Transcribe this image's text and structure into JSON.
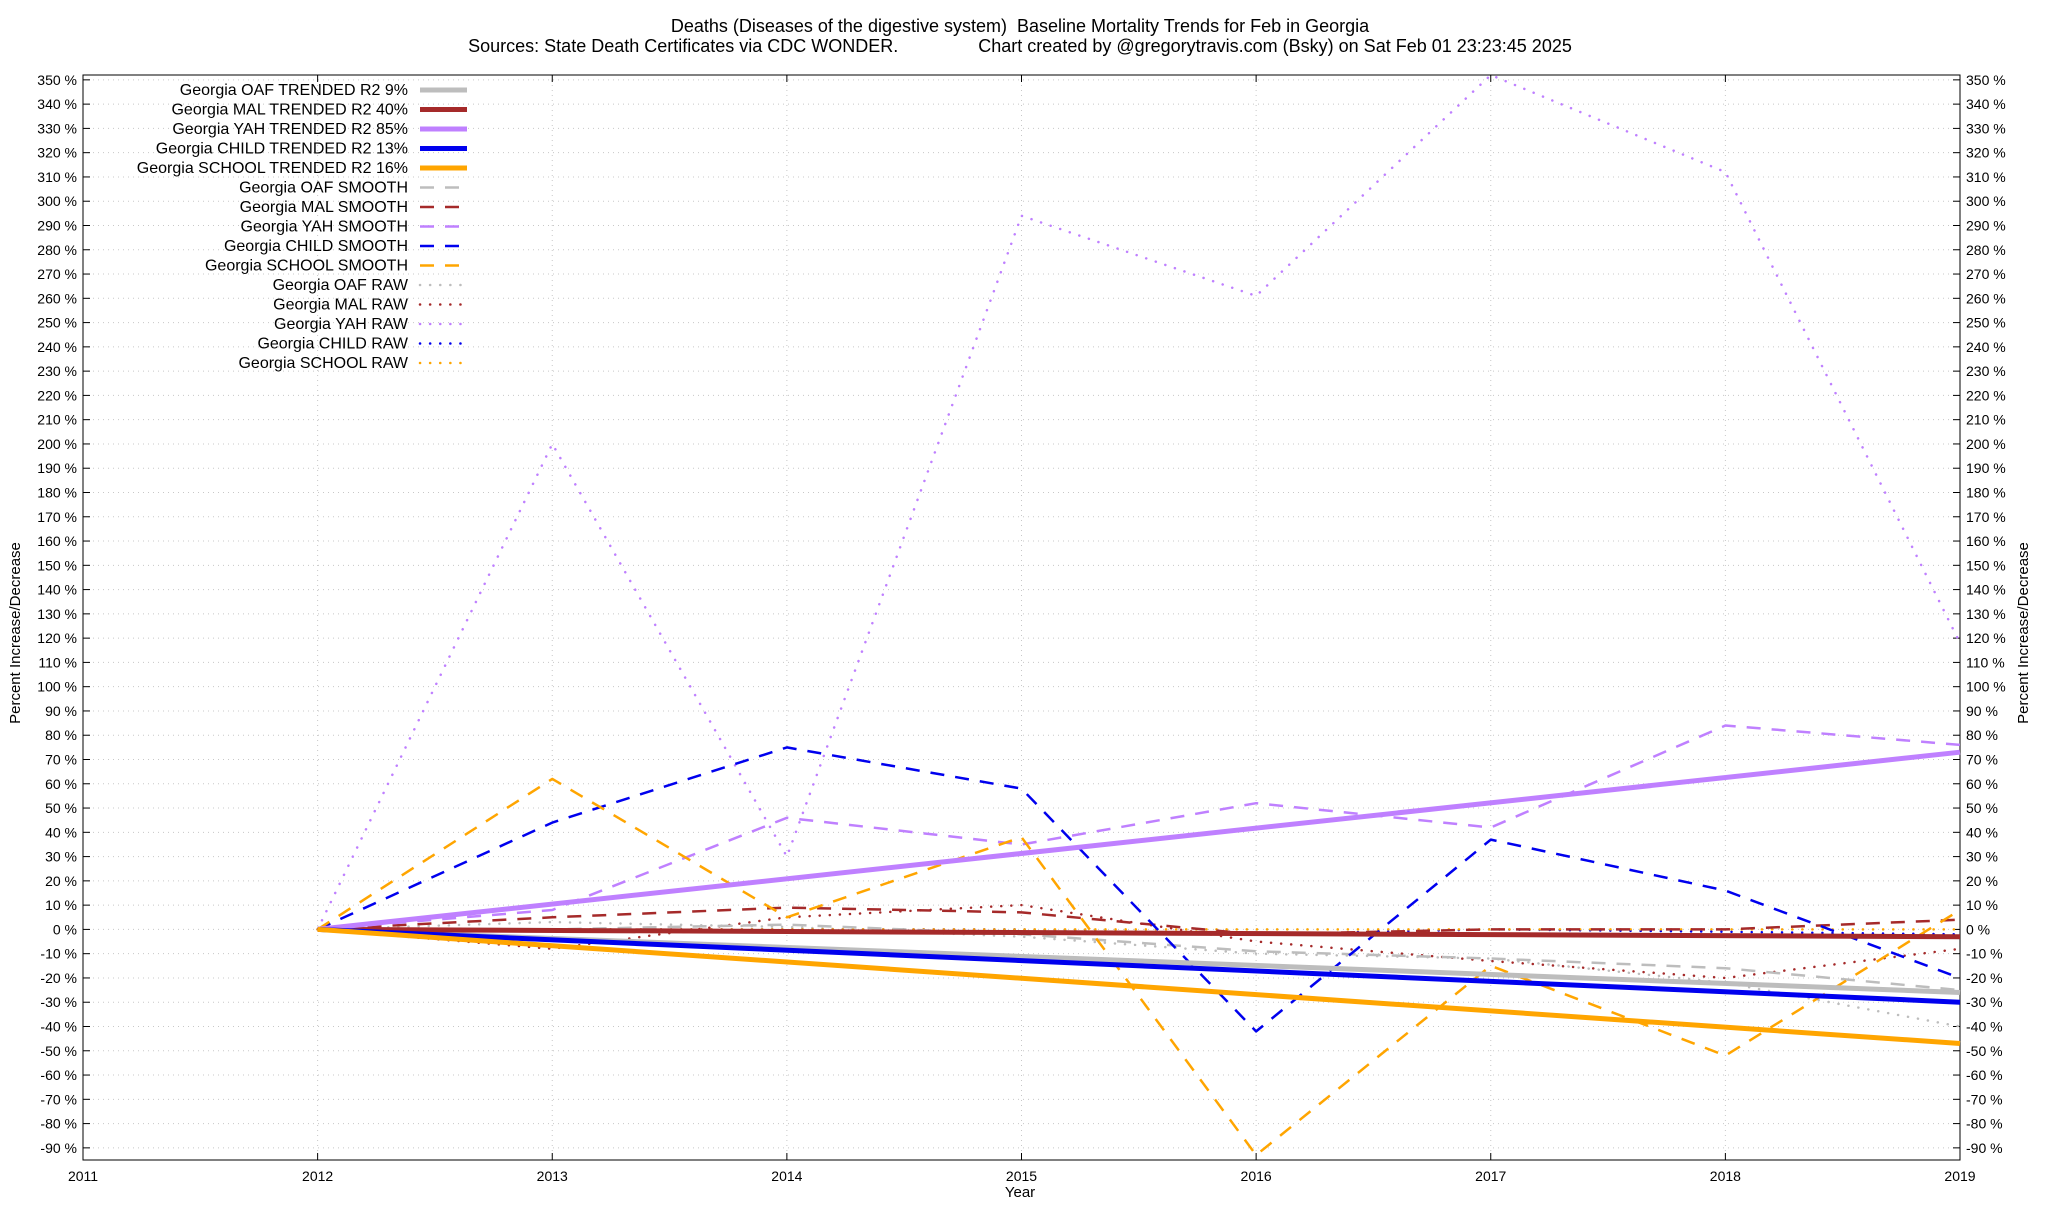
{
  "chart_data": {
    "type": "line",
    "title": "Deaths (Diseases of the digestive system)  Baseline Mortality Trends for Feb in Georgia",
    "subtitle": "Sources: State Death Certificates via CDC WONDER.                Chart created by @gregorytravis.com (Bsky) on Sat Feb 01 23:23:45 2025",
    "xlabel": "Year",
    "ylabel": "Percent Increase/Decrease",
    "y2label": "Percent Increase/Decrease",
    "xlim": [
      2011,
      2019
    ],
    "ylim": [
      -95,
      352
    ],
    "xticks": [
      2011,
      2012,
      2013,
      2014,
      2015,
      2016,
      2017,
      2018,
      2019
    ],
    "yticks": [
      -90,
      -80,
      -70,
      -60,
      -50,
      -40,
      -30,
      -20,
      -10,
      0,
      10,
      20,
      30,
      40,
      50,
      60,
      70,
      80,
      90,
      100,
      110,
      120,
      130,
      140,
      150,
      160,
      170,
      180,
      190,
      200,
      210,
      220,
      230,
      240,
      250,
      260,
      270,
      280,
      290,
      300,
      310,
      320,
      330,
      340,
      350
    ],
    "ytick_suffix": " %",
    "grid": true,
    "legend_position": "top-left",
    "series": [
      {
        "name": "Georgia OAF TRENDED R2  9%",
        "style": "solid",
        "color": "#bdbdbd",
        "x": [
          2012,
          2019
        ],
        "y": [
          0,
          -26
        ]
      },
      {
        "name": "Georgia MAL TRENDED R2  40%",
        "style": "solid",
        "color": "#a52a2a",
        "x": [
          2012,
          2019
        ],
        "y": [
          0,
          -3
        ]
      },
      {
        "name": "Georgia YAH TRENDED R2  85%",
        "style": "solid",
        "color": "#bf80ff",
        "x": [
          2012,
          2019
        ],
        "y": [
          0,
          73
        ]
      },
      {
        "name": "Georgia CHILD TRENDED R2  13%",
        "style": "solid",
        "color": "#0000ee",
        "x": [
          2012,
          2019
        ],
        "y": [
          0,
          -30
        ]
      },
      {
        "name": "Georgia SCHOOL TRENDED R2  16%",
        "style": "solid",
        "color": "#ffa500",
        "x": [
          2012,
          2019
        ],
        "y": [
          0,
          -47
        ]
      },
      {
        "name": "Georgia OAF SMOOTH",
        "style": "dash",
        "color": "#bdbdbd",
        "x": [
          2012,
          2013,
          2014,
          2015,
          2016,
          2017,
          2018,
          2019
        ],
        "y": [
          0,
          0,
          2,
          -2,
          -9,
          -12,
          -16,
          -25
        ]
      },
      {
        "name": "Georgia MAL SMOOTH",
        "style": "dash",
        "color": "#a52a2a",
        "x": [
          2012,
          2013,
          2014,
          2015,
          2016,
          2017,
          2018,
          2019
        ],
        "y": [
          0,
          5,
          9,
          7,
          -2,
          0,
          0,
          4
        ]
      },
      {
        "name": "Georgia YAH SMOOTH",
        "style": "dash",
        "color": "#bf80ff",
        "x": [
          2012,
          2013,
          2014,
          2015,
          2016,
          2017,
          2018,
          2019
        ],
        "y": [
          0,
          8,
          46,
          35,
          52,
          42,
          84,
          76
        ]
      },
      {
        "name": "Georgia CHILD SMOOTH",
        "style": "dash",
        "color": "#0000ee",
        "x": [
          2012,
          2013,
          2014,
          2015,
          2016,
          2017,
          2018,
          2019
        ],
        "y": [
          0,
          44,
          75,
          58,
          -42,
          37,
          16,
          -20
        ]
      },
      {
        "name": "Georgia SCHOOL SMOOTH",
        "style": "dash",
        "color": "#ffa500",
        "x": [
          2012,
          2013,
          2014,
          2015,
          2016,
          2017,
          2018,
          2019
        ],
        "y": [
          0,
          62,
          5,
          38,
          -93,
          -15,
          -52,
          8
        ]
      },
      {
        "name": "Georgia OAF RAW",
        "style": "dot",
        "color": "#bdbdbd",
        "x": [
          2012,
          2013,
          2014,
          2015,
          2016,
          2017,
          2018,
          2019
        ],
        "y": [
          0,
          3,
          1,
          -3,
          -10,
          -12,
          -22,
          -40
        ]
      },
      {
        "name": "Georgia MAL RAW",
        "style": "dot",
        "color": "#a52a2a",
        "x": [
          2012,
          2013,
          2014,
          2015,
          2016,
          2017,
          2018,
          2019
        ],
        "y": [
          0,
          -8,
          5,
          10,
          -5,
          -13,
          -20,
          -8
        ]
      },
      {
        "name": "Georgia YAH RAW",
        "style": "dot",
        "color": "#bf80ff",
        "x": [
          2012,
          2013,
          2014,
          2015,
          2016,
          2017,
          2018,
          2019
        ],
        "y": [
          0,
          200,
          30,
          294,
          261,
          352,
          312,
          118
        ]
      },
      {
        "name": "Georgia CHILD RAW",
        "style": "dot",
        "color": "#0000ee",
        "x": [
          2012,
          2013,
          2014,
          2015,
          2016,
          2017,
          2018,
          2019
        ],
        "y": [
          0,
          0,
          0,
          0,
          -2,
          0,
          -1,
          -2
        ]
      },
      {
        "name": "Georgia SCHOOL RAW",
        "style": "dot",
        "color": "#ffa500",
        "x": [
          2012,
          2013,
          2014,
          2015,
          2016,
          2017,
          2018,
          2019
        ],
        "y": [
          0,
          0,
          0,
          0,
          0,
          0,
          0,
          0
        ]
      }
    ]
  }
}
